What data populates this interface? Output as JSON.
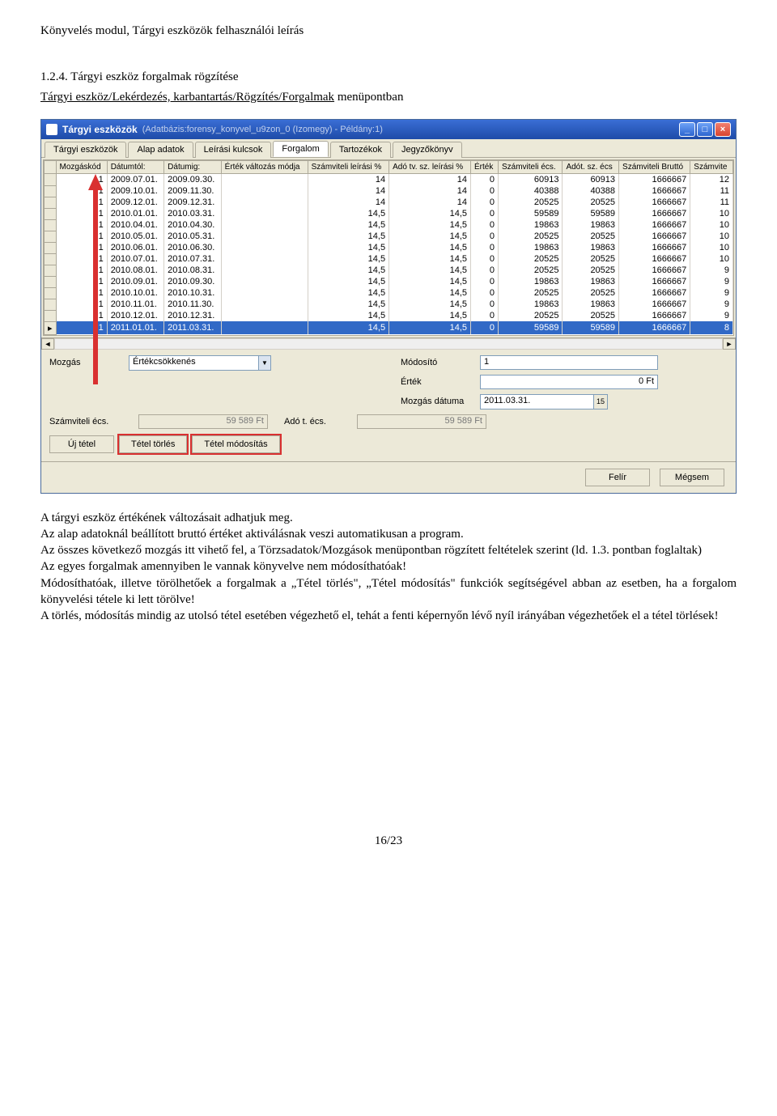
{
  "doc": {
    "header": "Könyvelés modul, Tárgyi eszközök felhasználói leírás",
    "section_num": "1.2.4. Tárgyi eszköz forgalmak rögzítése",
    "section_path_prefix": "Tárgyi eszköz/Lekérdezés, karbantartás/Rögzítés/Forgalmak",
    "section_path_suffix": " menüpontban",
    "page_num": "16/23"
  },
  "window": {
    "title": "Tárgyi eszközök",
    "subtitle": "(Adatbázis:forensy_konyvel_u9zon_0 (Izomegy) - Példány:1)",
    "min": "_",
    "max": "□",
    "close": "×"
  },
  "tabs": [
    "Tárgyi eszközök",
    "Alap adatok",
    "Leírási kulcsok",
    "Forgalom",
    "Tartozékok",
    "Jegyzőkönyv"
  ],
  "active_tab": 3,
  "columns": [
    "Mozgáskód",
    "Dátumtól:",
    "Dátumig:",
    "Érték változás módja",
    "Számviteli leírási %",
    "Adó tv. sz. leírási %",
    "Érték",
    "Számviteli écs.",
    "Adót. sz. écs",
    "Számviteli Bruttó",
    "Számvite"
  ],
  "rows": [
    {
      "kod": "1",
      "tol": "2009.07.01.",
      "ig": "2009.09.30.",
      "mod": "",
      "szl": "14",
      "ado": "14",
      "ert": "0",
      "secs": "60913",
      "aecs": "60913",
      "brutto": "1666667",
      "tail": "12"
    },
    {
      "kod": "1",
      "tol": "2009.10.01.",
      "ig": "2009.11.30.",
      "mod": "",
      "szl": "14",
      "ado": "14",
      "ert": "0",
      "secs": "40388",
      "aecs": "40388",
      "brutto": "1666667",
      "tail": "11"
    },
    {
      "kod": "1",
      "tol": "2009.12.01.",
      "ig": "2009.12.31.",
      "mod": "",
      "szl": "14",
      "ado": "14",
      "ert": "0",
      "secs": "20525",
      "aecs": "20525",
      "brutto": "1666667",
      "tail": "11"
    },
    {
      "kod": "1",
      "tol": "2010.01.01.",
      "ig": "2010.03.31.",
      "mod": "",
      "szl": "14,5",
      "ado": "14,5",
      "ert": "0",
      "secs": "59589",
      "aecs": "59589",
      "brutto": "1666667",
      "tail": "10"
    },
    {
      "kod": "1",
      "tol": "2010.04.01.",
      "ig": "2010.04.30.",
      "mod": "",
      "szl": "14,5",
      "ado": "14,5",
      "ert": "0",
      "secs": "19863",
      "aecs": "19863",
      "brutto": "1666667",
      "tail": "10"
    },
    {
      "kod": "1",
      "tol": "2010.05.01.",
      "ig": "2010.05.31.",
      "mod": "",
      "szl": "14,5",
      "ado": "14,5",
      "ert": "0",
      "secs": "20525",
      "aecs": "20525",
      "brutto": "1666667",
      "tail": "10"
    },
    {
      "kod": "1",
      "tol": "2010.06.01.",
      "ig": "2010.06.30.",
      "mod": "",
      "szl": "14,5",
      "ado": "14,5",
      "ert": "0",
      "secs": "19863",
      "aecs": "19863",
      "brutto": "1666667",
      "tail": "10"
    },
    {
      "kod": "1",
      "tol": "2010.07.01.",
      "ig": "2010.07.31.",
      "mod": "",
      "szl": "14,5",
      "ado": "14,5",
      "ert": "0",
      "secs": "20525",
      "aecs": "20525",
      "brutto": "1666667",
      "tail": "10"
    },
    {
      "kod": "1",
      "tol": "2010.08.01.",
      "ig": "2010.08.31.",
      "mod": "",
      "szl": "14,5",
      "ado": "14,5",
      "ert": "0",
      "secs": "20525",
      "aecs": "20525",
      "brutto": "1666667",
      "tail": "9"
    },
    {
      "kod": "1",
      "tol": "2010.09.01.",
      "ig": "2010.09.30.",
      "mod": "",
      "szl": "14,5",
      "ado": "14,5",
      "ert": "0",
      "secs": "19863",
      "aecs": "19863",
      "brutto": "1666667",
      "tail": "9"
    },
    {
      "kod": "1",
      "tol": "2010.10.01.",
      "ig": "2010.10.31.",
      "mod": "",
      "szl": "14,5",
      "ado": "14,5",
      "ert": "0",
      "secs": "20525",
      "aecs": "20525",
      "brutto": "1666667",
      "tail": "9"
    },
    {
      "kod": "1",
      "tol": "2010.11.01.",
      "ig": "2010.11.30.",
      "mod": "",
      "szl": "14,5",
      "ado": "14,5",
      "ert": "0",
      "secs": "19863",
      "aecs": "19863",
      "brutto": "1666667",
      "tail": "9"
    },
    {
      "kod": "1",
      "tol": "2010.12.01.",
      "ig": "2010.12.31.",
      "mod": "",
      "szl": "14,5",
      "ado": "14,5",
      "ert": "0",
      "secs": "20525",
      "aecs": "20525",
      "brutto": "1666667",
      "tail": "9"
    },
    {
      "kod": "1",
      "tol": "2011.01.01.",
      "ig": "2011.03.31.",
      "mod": "",
      "szl": "14,5",
      "ado": "14,5",
      "ert": "0",
      "secs": "59589",
      "aecs": "59589",
      "brutto": "1666667",
      "tail": "8"
    }
  ],
  "selected_row": 13,
  "form": {
    "mozgas_label": "Mozgás",
    "mozgas_value": "Értékcsökkenés",
    "modosito_label": "Módosító",
    "modosito_value": "1",
    "ertek_label": "Érték",
    "ertek_value": "0 Ft",
    "mozgas_datuma_label": "Mozgás dátuma",
    "mozgas_datuma_value": "2011.03.31.",
    "szecs_label": "Számviteli écs.",
    "szecs_value": "59 589 Ft",
    "adoecs_label": "Adó t. écs.",
    "adoecs_value": "59 589 Ft"
  },
  "buttons": {
    "uj": "Új tétel",
    "torles": "Tétel törlés",
    "modositas": "Tétel módosítás",
    "felir": "Felír",
    "megsem": "Mégsem"
  },
  "paragraphs": [
    "A tárgyi eszköz értékének változásait adhatjuk meg.",
    "Az alap adatoknál beállított bruttó értéket aktiválásnak veszi automatikusan a program.",
    "Az összes következő mozgás itt vihető fel, a Törzsadatok/Mozgások menüpontban rögzített feltételek szerint (ld. 1.3. pontban foglaltak)",
    "Az egyes forgalmak amennyiben le vannak könyvelve nem módosíthatóak!",
    "Módosíthatóak, illetve törölhetőek a forgalmak a „Tétel törlés\", „Tétel módosítás\" funkciók segítségével abban az esetben, ha a forgalom könyvelési tétele ki lett törölve!",
    "A törlés, módosítás mindig az utolsó tétel esetében végezhető el, tehát a fenti képernyőn lévő nyíl irányában végezhetőek el a tétel törlések!"
  ],
  "colors": {
    "titlebar_start": "#3a6ed5",
    "titlebar_end": "#1e4ba8",
    "selection": "#3169c6",
    "panel": "#ece9d8",
    "border": "#aca899",
    "highlight": "#d93030"
  },
  "arrow_indicator": "▸"
}
